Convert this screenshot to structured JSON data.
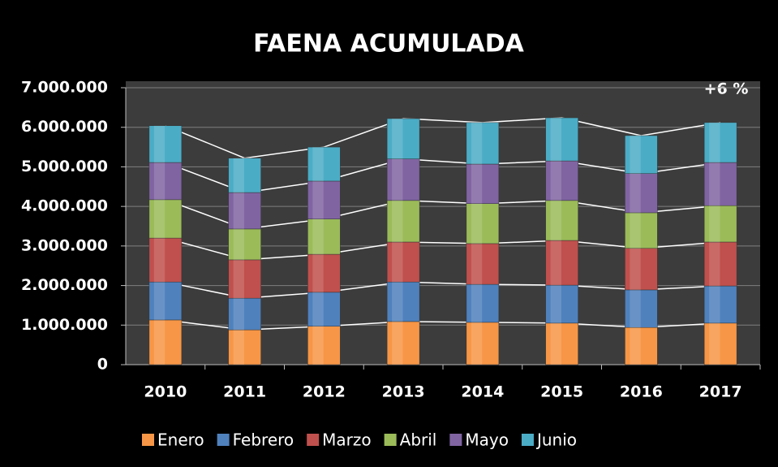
{
  "chart_data": {
    "type": "stacked_bar",
    "title": "FAENA ACUMULADA",
    "annotation": "+6 %",
    "categories": [
      "2010",
      "2011",
      "2012",
      "2013",
      "2014",
      "2015",
      "2016",
      "2017"
    ],
    "series": [
      {
        "name": "Enero",
        "color": "#f79646",
        "values": [
          1130000,
          880000,
          970000,
          1090000,
          1070000,
          1050000,
          940000,
          1050000
        ]
      },
      {
        "name": "Febrero",
        "color": "#4f81bd",
        "values": [
          960000,
          800000,
          860000,
          1000000,
          960000,
          960000,
          950000,
          940000
        ]
      },
      {
        "name": "Marzo",
        "color": "#c0504d",
        "values": [
          1110000,
          970000,
          960000,
          1010000,
          1030000,
          1130000,
          1050000,
          1110000
        ]
      },
      {
        "name": "Abril",
        "color": "#9bbb59",
        "values": [
          970000,
          780000,
          890000,
          1050000,
          1010000,
          1010000,
          900000,
          920000
        ]
      },
      {
        "name": "Mayo",
        "color": "#8064a2",
        "values": [
          940000,
          920000,
          960000,
          1050000,
          1000000,
          1000000,
          990000,
          1090000
        ]
      },
      {
        "name": "Junio",
        "color": "#4bacc6",
        "values": [
          930000,
          870000,
          860000,
          1020000,
          1050000,
          1090000,
          960000,
          1010000
        ]
      }
    ],
    "ylim": [
      0,
      7000000
    ],
    "yticks": [
      0,
      {
        "value": 1000000,
        "label": "1.000.000"
      },
      {
        "value": 2000000,
        "label": "2.000.000"
      },
      {
        "value": 3000000,
        "label": "3.000.000"
      },
      {
        "value": 4000000,
        "label": "4.000.000"
      },
      {
        "value": 5000000,
        "label": "5.000.000"
      },
      {
        "value": 6000000,
        "label": "6.000.000"
      },
      {
        "value": 7000000,
        "label": "7.000.000"
      }
    ],
    "grid": true,
    "legend": "bottom"
  }
}
